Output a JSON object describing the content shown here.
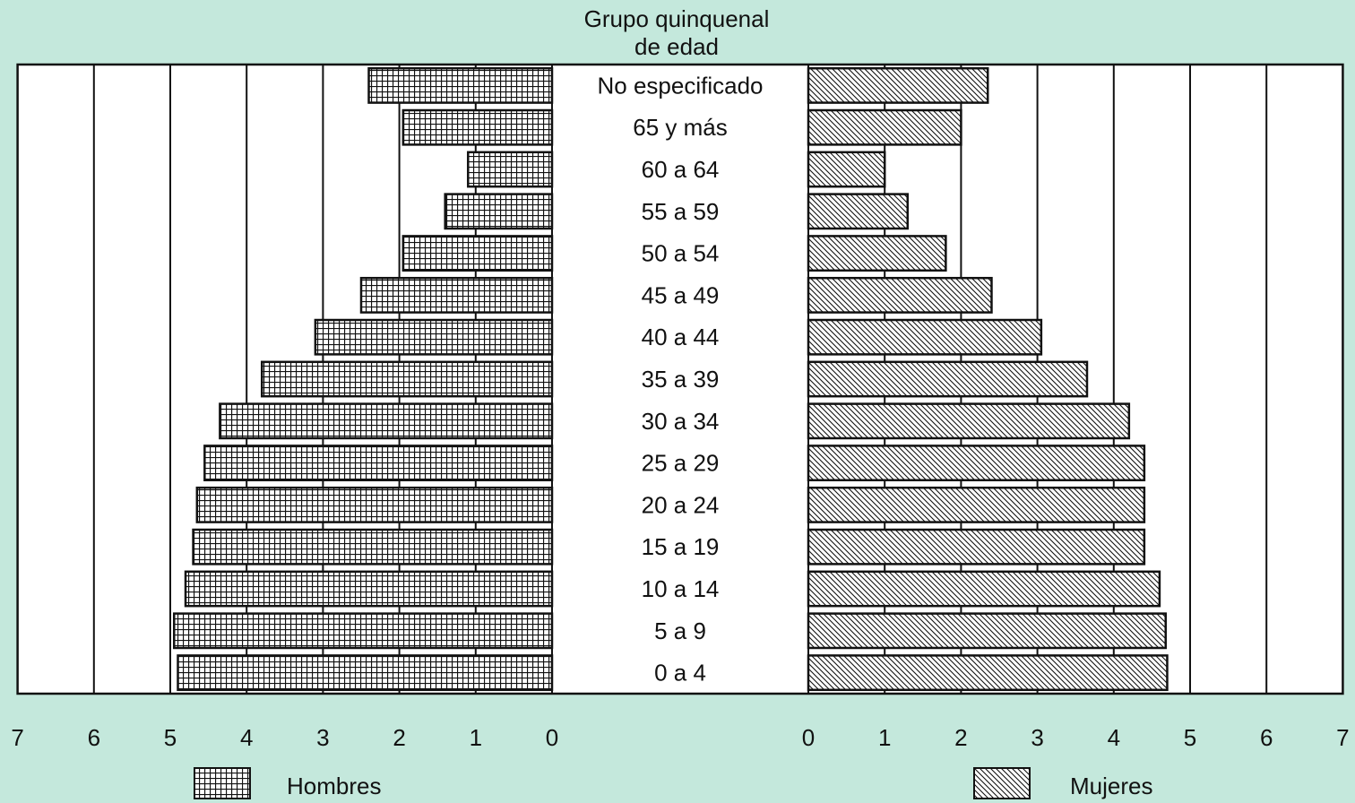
{
  "chart_data": {
    "type": "bar",
    "subtype": "population-pyramid",
    "center_title_line1": "Grupo quinquenal",
    "center_title_line2": "de edad",
    "categories": [
      "No especificado",
      "65 y más",
      "60 a 64",
      "55 a 59",
      "50 a 54",
      "45 a 49",
      "40 a 44",
      "35 a 39",
      "30 a 34",
      "25 a 29",
      "20 a 24",
      "15 a 19",
      "10 a 14",
      "5 a 9",
      "0 a 4"
    ],
    "series": [
      {
        "name": "Hombres",
        "side": "left",
        "pattern": "grid",
        "values": [
          2.4,
          1.95,
          1.1,
          1.4,
          1.95,
          2.5,
          3.1,
          3.8,
          4.35,
          4.55,
          4.65,
          4.7,
          4.8,
          4.95,
          4.9
        ]
      },
      {
        "name": "Mujeres",
        "side": "right",
        "pattern": "diagonal-hatch",
        "values": [
          2.35,
          2.0,
          1.0,
          1.3,
          1.8,
          2.4,
          3.05,
          3.65,
          4.2,
          4.4,
          4.4,
          4.4,
          4.6,
          4.68,
          4.7
        ]
      }
    ],
    "xlim": [
      0,
      7
    ],
    "xticks": [
      "0",
      "1",
      "2",
      "3",
      "4",
      "5",
      "6",
      "7"
    ],
    "grid": true,
    "legend_placement": "bottom"
  },
  "colors": {
    "background": "#c4e8dc",
    "plot": "#ffffff",
    "ink": "#111111"
  }
}
